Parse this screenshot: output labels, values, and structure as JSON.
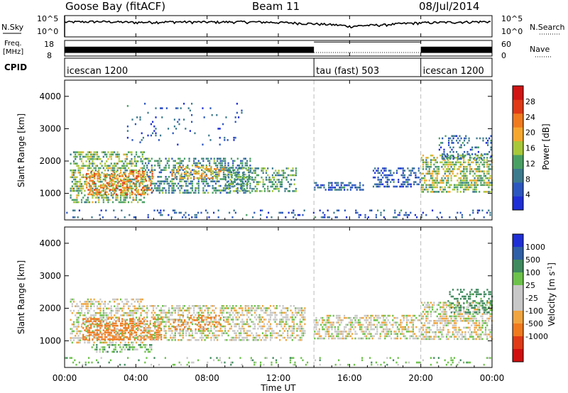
{
  "header": {
    "station": "Goose Bay (fitACF)",
    "beam": "Beam 11",
    "date": "08/Jul/2014"
  },
  "chart_data": [
    {
      "type": "line",
      "panel": "noise",
      "left_label": "N.Sky",
      "right_label": "N.Search",
      "left_ticks": [
        "10^5",
        "10^0"
      ],
      "right_ticks": [
        "10^5",
        "10^0"
      ],
      "log_scale": true,
      "series": [
        {
          "name": "N.Sky",
          "style": "solid",
          "x": [
            0,
            2,
            4,
            6,
            8,
            10,
            12,
            14,
            16,
            18,
            20,
            22,
            24
          ],
          "y": [
            3000,
            4000,
            2500,
            3500,
            3000,
            3500,
            2500,
            1200,
            300,
            700,
            2000,
            3000,
            4000
          ]
        },
        {
          "name": "N.Search",
          "style": "dotted",
          "x": [],
          "y": []
        }
      ]
    },
    {
      "type": "line",
      "panel": "frequency-nave",
      "left_label": "Freq. [MHz]",
      "right_label": "Nave",
      "left_ticks": [
        "18",
        "8"
      ],
      "right_ticks": [
        "60",
        "0"
      ],
      "series": [
        {
          "name": "Freq. [MHz]",
          "style": "dense-band",
          "x": [
            0,
            14,
            20,
            24
          ],
          "y": [
            12,
            12,
            12,
            12
          ]
        },
        {
          "name": "Nave",
          "style": "dotted",
          "x": [
            14,
            20
          ],
          "y": [
            10,
            10
          ]
        }
      ]
    },
    {
      "type": "table",
      "panel": "cpid",
      "label": "CPID",
      "segments": [
        {
          "name": "icescan 1200",
          "start": 0,
          "end": 14
        },
        {
          "name": "tau (fast) 503",
          "start": 14,
          "end": 20
        },
        {
          "name": "icescan 1200",
          "start": 20,
          "end": 24
        }
      ]
    },
    {
      "type": "heatmap",
      "panel": "power",
      "ylabel": "Slant Range [km]",
      "yticks": [
        1000,
        2000,
        3000,
        4000
      ],
      "ylim": [
        180,
        4500
      ],
      "colorbar": {
        "label": "Power [dB]",
        "ticks": [
          4,
          8,
          12,
          16,
          20,
          24,
          28
        ]
      },
      "blobs": [
        {
          "t0": 0.3,
          "t1": 4.5,
          "r0": 700,
          "r1": 2300,
          "v": 14,
          "d": 0.5
        },
        {
          "t0": 1.2,
          "t1": 5.0,
          "r0": 900,
          "r1": 1700,
          "v": 22,
          "d": 0.45
        },
        {
          "t0": 4.5,
          "t1": 10.5,
          "r0": 1000,
          "r1": 2100,
          "v": 10,
          "d": 0.45
        },
        {
          "t0": 6.0,
          "t1": 9.0,
          "r0": 1400,
          "r1": 1850,
          "v": 20,
          "d": 0.4
        },
        {
          "t0": 9.0,
          "t1": 13.0,
          "r0": 1000,
          "r1": 1800,
          "v": 12,
          "d": 0.45
        },
        {
          "t0": 14.0,
          "t1": 16.8,
          "r0": 1050,
          "r1": 1350,
          "v": 6,
          "d": 0.55
        },
        {
          "t0": 17.3,
          "t1": 20.0,
          "r0": 1200,
          "r1": 1800,
          "v": 6,
          "d": 0.45
        },
        {
          "t0": 20.0,
          "t1": 24.0,
          "r0": 1000,
          "r1": 2200,
          "v": 15,
          "d": 0.55
        },
        {
          "t0": 21.0,
          "t1": 24.0,
          "r0": 2000,
          "r1": 2800,
          "v": 7,
          "d": 0.3
        },
        {
          "t0": 0.0,
          "t1": 24.0,
          "r0": 200,
          "r1": 500,
          "v": 6,
          "d": 0.15
        },
        {
          "t0": 3.5,
          "t1": 10.0,
          "r0": 2500,
          "r1": 3800,
          "v": 6,
          "d": 0.05
        }
      ]
    },
    {
      "type": "heatmap",
      "panel": "velocity",
      "ylabel": "Slant Range [km]",
      "yticks": [
        1000,
        2000,
        3000,
        4000
      ],
      "ylim": [
        180,
        4500
      ],
      "colorbar": {
        "label": "Velocity [m s^-1]",
        "ticks": [
          1000,
          500,
          100,
          25,
          -25,
          -100,
          -500,
          -1000
        ]
      },
      "blobs": [
        {
          "t0": 0.3,
          "t1": 4.5,
          "r0": 900,
          "r1": 2300,
          "v": 0,
          "d": 0.5
        },
        {
          "t0": 1.0,
          "t1": 5.5,
          "r0": 1000,
          "r1": 1700,
          "v": -300,
          "d": 0.5
        },
        {
          "t0": 1.5,
          "t1": 5.0,
          "r0": 600,
          "r1": 900,
          "v": 60,
          "d": 0.5
        },
        {
          "t0": 4.5,
          "t1": 13.5,
          "r0": 1000,
          "r1": 2100,
          "v": 0,
          "d": 0.5
        },
        {
          "t0": 6.0,
          "t1": 9.0,
          "r0": 1300,
          "r1": 1800,
          "v": -250,
          "d": 0.3
        },
        {
          "t0": 14.0,
          "t1": 20.0,
          "r0": 1050,
          "r1": 1800,
          "v": 0,
          "d": 0.5
        },
        {
          "t0": 20.0,
          "t1": 24.0,
          "r0": 1000,
          "r1": 2200,
          "v": 0,
          "d": 0.55
        },
        {
          "t0": 21.5,
          "t1": 24.0,
          "r0": 1800,
          "r1": 2600,
          "v": 150,
          "d": 0.4
        },
        {
          "t0": 0.0,
          "t1": 24.0,
          "r0": 200,
          "r1": 500,
          "v": 60,
          "d": 0.12
        }
      ]
    }
  ],
  "xaxis": {
    "label": "Time UT",
    "ticks": [
      "00:00",
      "04:00",
      "08:00",
      "12:00",
      "16:00",
      "20:00",
      "00:00"
    ],
    "range": [
      0,
      24
    ]
  },
  "colors": {
    "power_scale": [
      "#1f2fd6",
      "#2c57c0",
      "#3c7a8e",
      "#49a063",
      "#a8c83a",
      "#f6a72e",
      "#f07a1e",
      "#e03a16",
      "#d11414"
    ],
    "velocity_scale": [
      "#1f2fd6",
      "#2f5fa6",
      "#3f8a5e",
      "#6cc24a",
      "#c8c8c8",
      "#c8c8c8",
      "#f0a540",
      "#f07a1e",
      "#e03a16",
      "#d10f0f"
    ]
  }
}
